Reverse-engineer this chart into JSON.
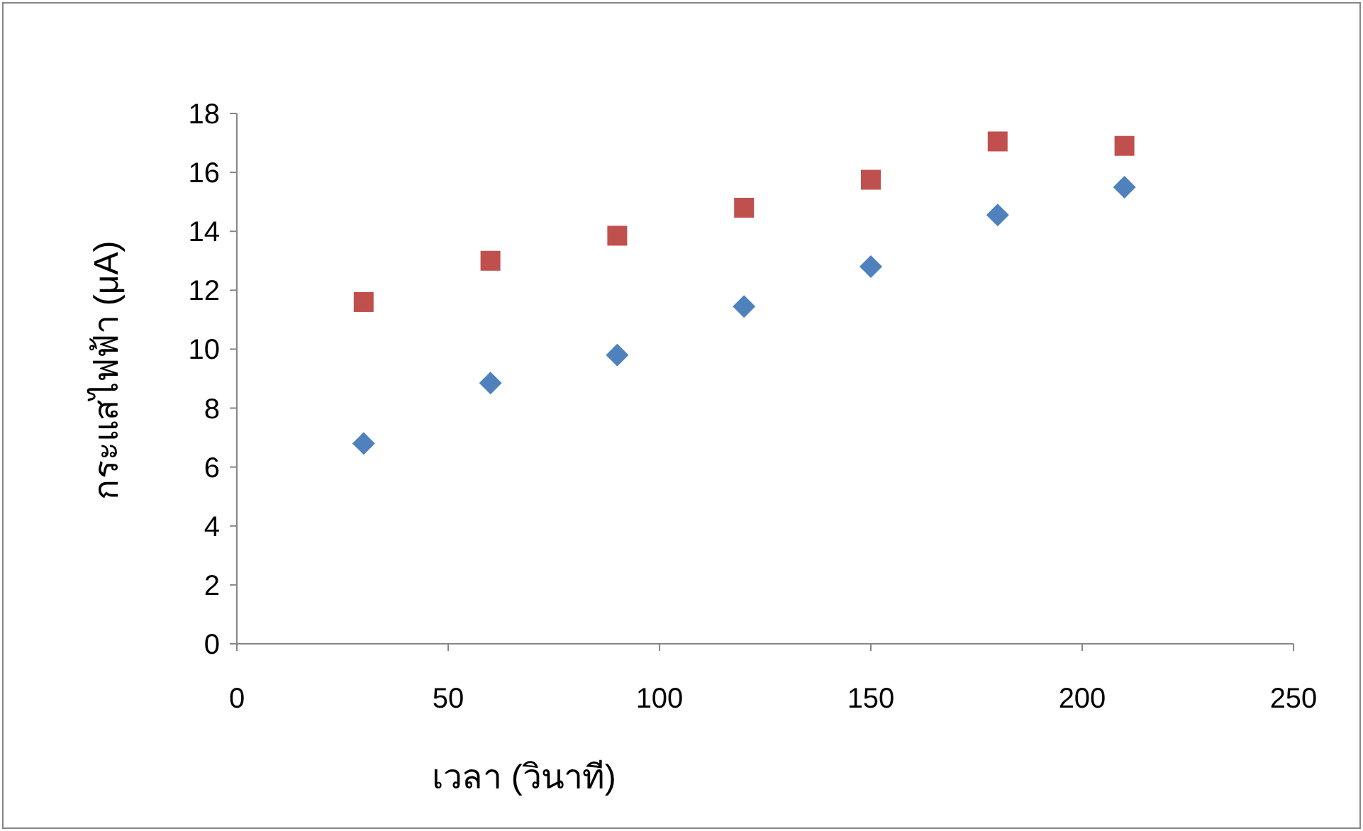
{
  "chart_data": {
    "type": "scatter",
    "xlabel": "เวลา (วินาที)",
    "ylabel": "กระแสไฟฟ้า (μA)",
    "x": [
      30,
      60,
      90,
      120,
      150,
      180,
      210
    ],
    "series": [
      {
        "color": "#4f81bd",
        "marker": "diamond",
        "values": [
          6.8,
          8.85,
          9.8,
          11.45,
          12.8,
          14.55,
          15.5
        ]
      },
      {
        "color": "#c0504d",
        "marker": "square",
        "values": [
          11.6,
          13.0,
          13.85,
          14.8,
          15.75,
          17.05,
          16.9
        ]
      }
    ],
    "xlim": [
      0,
      250
    ],
    "xticks": [
      0,
      50,
      100,
      150,
      200,
      250
    ],
    "ylim": [
      0,
      18
    ],
    "yticks": [
      0,
      2,
      4,
      6,
      8,
      10,
      12,
      14,
      16,
      18
    ]
  }
}
